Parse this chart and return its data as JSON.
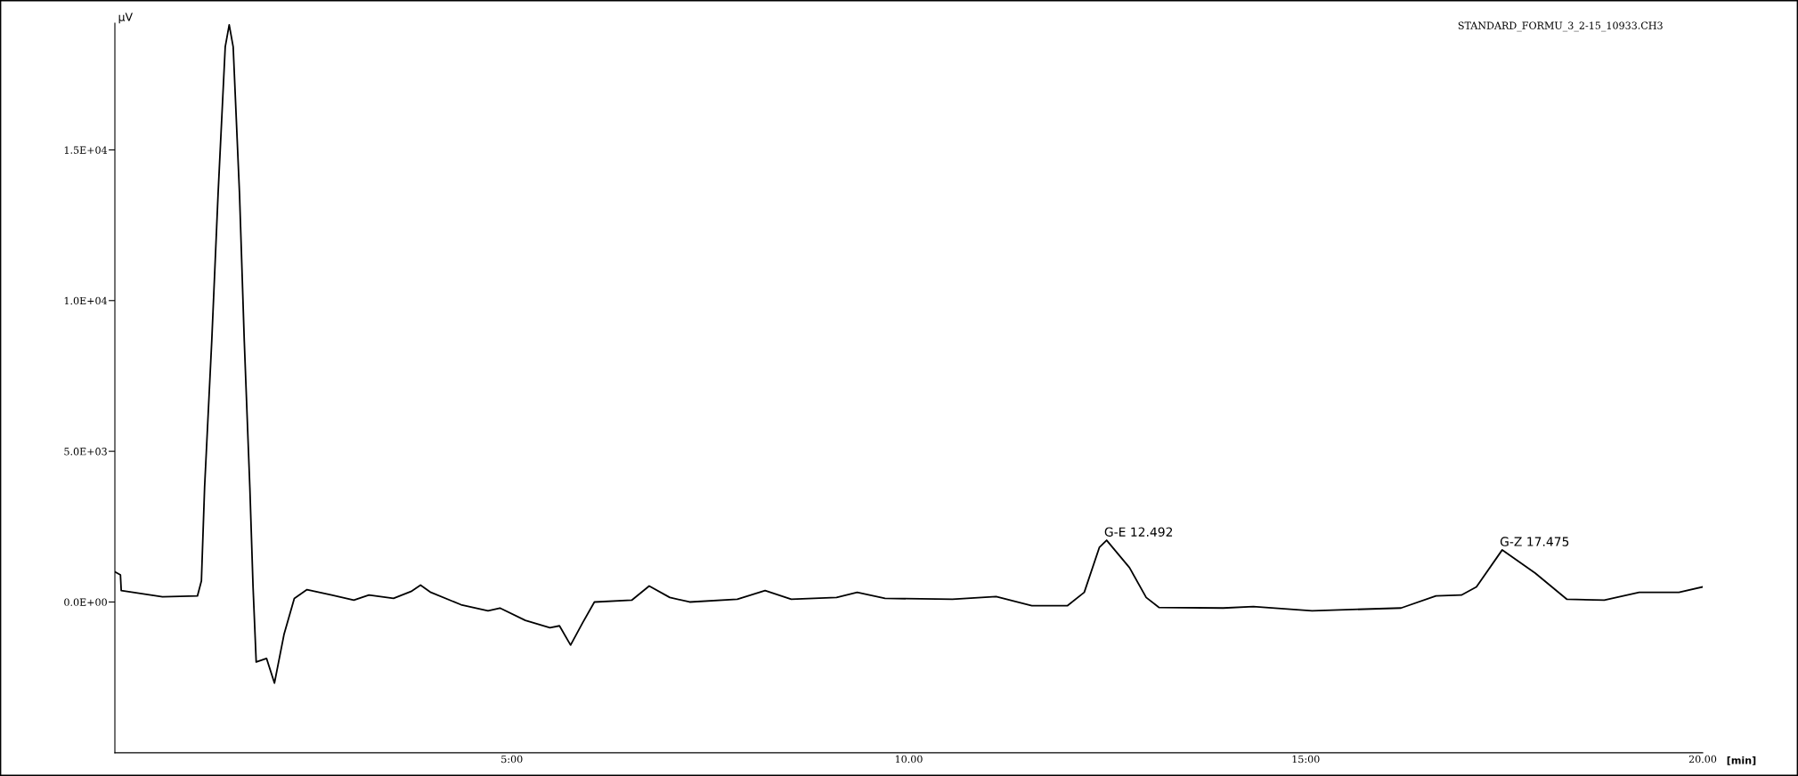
{
  "chart_data": {
    "type": "line",
    "title": "STANDARD_FORMU_3_2-15_10933.CH3",
    "xlabel": "[min]",
    "ylabel": "μV",
    "x": [
      0,
      0.07,
      0.08,
      0.6,
      1.04,
      1.09,
      1.13,
      1.22,
      1.3,
      1.39,
      1.44,
      1.49,
      1.57,
      1.63,
      1.7,
      1.74,
      1.78,
      1.91,
      2.01,
      2.13,
      2.26,
      2.42,
      2.73,
      3.01,
      3.2,
      3.51,
      3.73,
      3.85,
      3.98,
      4.36,
      4.7,
      4.85,
      5.17,
      5.48,
      5.6,
      5.74,
      5.89,
      6.04,
      6.51,
      6.73,
      6.99,
      7.24,
      7.84,
      8.19,
      8.52,
      9.09,
      9.35,
      9.7,
      10.55,
      11.1,
      11.55,
      12.0,
      12.21,
      12.4,
      12.492,
      12.78,
      12.99,
      13.15,
      13.96,
      14.34,
      15.08,
      16.2,
      16.64,
      16.96,
      17.15,
      17.475,
      17.89,
      18.29,
      18.76,
      19.2,
      19.7,
      20.0
    ],
    "series": [
      {
        "color": "#000000",
        "values": [
          1000,
          900,
          380,
          175,
          200,
          700,
          3800,
          8650,
          13540,
          18420,
          19150,
          18420,
          13540,
          8650,
          3800,
          530,
          -1990,
          -1870,
          -2690,
          -1080,
          120,
          410,
          230,
          60,
          230,
          120,
          350,
          560,
          320,
          -90,
          -290,
          -200,
          -610,
          -850,
          -790,
          -1430,
          -700,
          0,
          60,
          530,
          150,
          0,
          90,
          380,
          90,
          150,
          320,
          120,
          90,
          180,
          -120,
          -120,
          320,
          1810,
          2050,
          1140,
          150,
          -180,
          -200,
          -150,
          -290,
          -200,
          200,
          230,
          500,
          1730,
          960,
          90,
          60,
          320,
          320,
          500
        ]
      }
    ],
    "xlim": [
      0,
      20.0
    ],
    "ylim": [
      -5000,
      19200
    ],
    "xticks": [
      {
        "value": 5,
        "label": "5:00"
      },
      {
        "value": 10,
        "label": "10.00"
      },
      {
        "value": 15,
        "label": "15:00"
      },
      {
        "value": 20,
        "label": "20.00"
      }
    ],
    "yticks": [
      {
        "value": 0,
        "label": "0.0E+00"
      },
      {
        "value": 5000,
        "label": "5.0E+03"
      },
      {
        "value": 10000,
        "label": "1.0E+04"
      },
      {
        "value": 15000,
        "label": "1.5E+04"
      }
    ],
    "annotations": [
      {
        "text": "G-E 12.492",
        "x": 12.492,
        "y": 2050
      },
      {
        "text": "G-Z 17.475",
        "x": 17.475,
        "y": 1730
      }
    ],
    "grid": false,
    "legend": false,
    "marker": "none",
    "line_style": "solid"
  }
}
